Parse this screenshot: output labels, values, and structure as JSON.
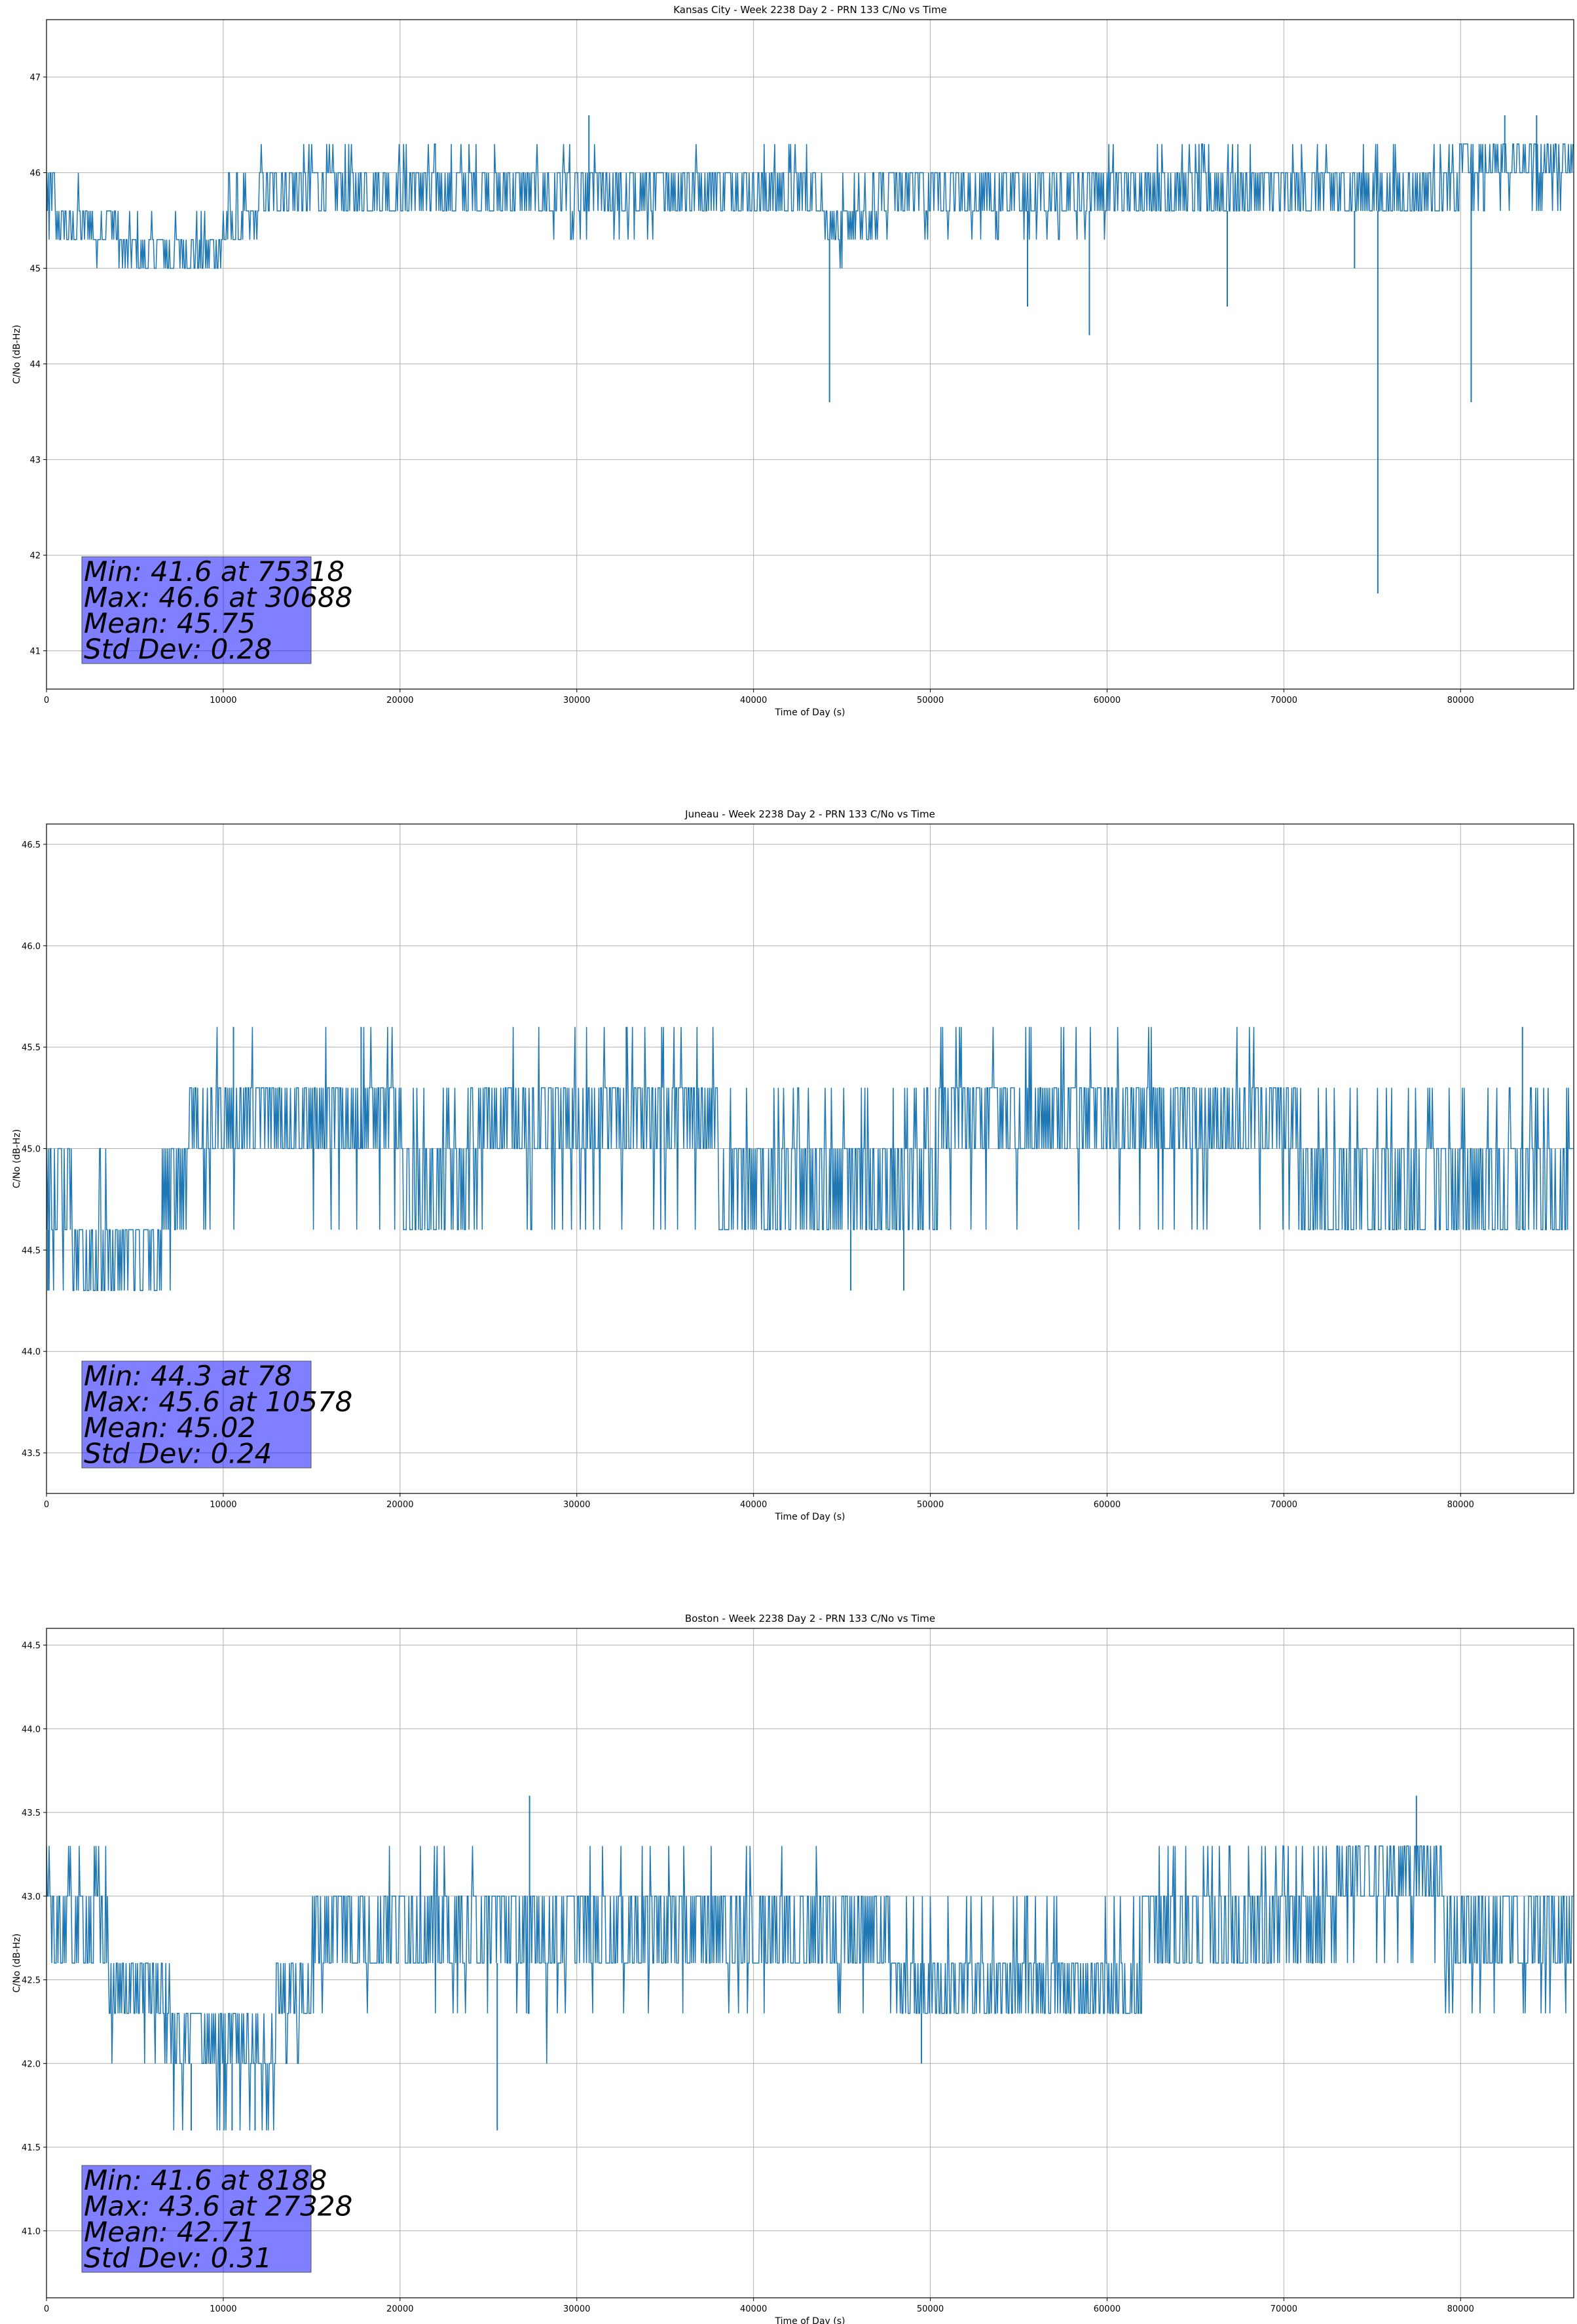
{
  "chart_data": [
    {
      "type": "line",
      "title": "Kansas City - Week 2238 Day 2 - PRN 133 C/No vs Time",
      "xlabel": "Time of Day (s)",
      "ylabel": "C/No (dB-Hz)",
      "xlim": [
        0,
        86400
      ],
      "ylim": [
        40.6,
        47.6
      ],
      "xticks": [
        0,
        10000,
        20000,
        30000,
        40000,
        50000,
        60000,
        70000,
        80000
      ],
      "yticks": [
        41,
        42,
        43,
        44,
        45,
        46,
        47
      ],
      "xtick_labels": [
        "0",
        "10000",
        "20000",
        "30000",
        "40000",
        "50000",
        "60000",
        "70000",
        "80000"
      ],
      "ytick_labels": [
        "41",
        "42",
        "43",
        "44",
        "45",
        "46",
        "47"
      ],
      "grid": true,
      "color": "#1f77b4",
      "series": [
        {
          "segments": [
            {
              "x": [
                0,
                500
              ],
              "levels": [
                45.6,
                46.0,
                45.3
              ]
            },
            {
              "x": [
                500,
                2000
              ],
              "levels": [
                45.3,
                45.6,
                46.0
              ]
            },
            {
              "x": [
                2000,
                4000
              ],
              "levels": [
                45.3,
                45.6,
                45.0
              ]
            },
            {
              "x": [
                4000,
                10000
              ],
              "levels": [
                45.0,
                45.3,
                45.6
              ]
            },
            {
              "x": [
                10000,
                12000
              ],
              "levels": [
                45.3,
                45.6,
                46.0
              ]
            },
            {
              "x": [
                12000,
                25500
              ],
              "levels": [
                45.6,
                46.0,
                46.3
              ]
            },
            {
              "x": [
                25500,
                36000
              ],
              "levels": [
                45.6,
                46.0,
                45.3,
                46.3
              ]
            },
            {
              "x": [
                36000,
                44000
              ],
              "levels": [
                45.6,
                46.0,
                46.3
              ]
            },
            {
              "x": [
                44000,
                47000
              ],
              "levels": [
                45.3,
                45.6,
                46.0,
                45.0
              ]
            },
            {
              "x": [
                47000,
                60000
              ],
              "levels": [
                45.6,
                46.0,
                45.3
              ]
            },
            {
              "x": [
                60000,
                80000
              ],
              "levels": [
                45.6,
                46.0,
                46.3
              ]
            },
            {
              "x": [
                80000,
                86400
              ],
              "levels": [
                46.0,
                46.3,
                45.6
              ]
            }
          ],
          "spikes": [
            {
              "x": 30688,
              "y": 46.6
            },
            {
              "x": 44300,
              "y": 43.6
            },
            {
              "x": 55500,
              "y": 44.6
            },
            {
              "x": 59000,
              "y": 44.3
            },
            {
              "x": 66800,
              "y": 44.6
            },
            {
              "x": 74000,
              "y": 45.0
            },
            {
              "x": 75318,
              "y": 41.6
            },
            {
              "x": 80600,
              "y": 43.6
            },
            {
              "x": 82500,
              "y": 46.6
            },
            {
              "x": 84300,
              "y": 46.6
            }
          ]
        }
      ],
      "stats": {
        "min": "Min: 41.6 at 75318",
        "max": "Max: 46.6 at 30688",
        "mean": "Mean: 45.75",
        "std": "Std Dev: 0.28"
      }
    },
    {
      "type": "line",
      "title": "Juneau - Week 2238 Day 2 - PRN 133 C/No vs Time",
      "xlabel": "Time of Day (s)",
      "ylabel": "C/No (dB-Hz)",
      "xlim": [
        0,
        86400
      ],
      "ylim": [
        43.3,
        46.6
      ],
      "xticks": [
        0,
        10000,
        20000,
        30000,
        40000,
        50000,
        60000,
        70000,
        80000
      ],
      "yticks": [
        43.5,
        44.0,
        44.5,
        45.0,
        45.5,
        46.0,
        46.5
      ],
      "xtick_labels": [
        "0",
        "10000",
        "20000",
        "30000",
        "40000",
        "50000",
        "60000",
        "70000",
        "80000"
      ],
      "ytick_labels": [
        "43.5",
        "44.0",
        "44.5",
        "45.0",
        "45.5",
        "46.0",
        "46.5"
      ],
      "grid": true,
      "color": "#1f77b4",
      "series": [
        {
          "segments": [
            {
              "x": [
                0,
                1500
              ],
              "levels": [
                44.6,
                45.0,
                44.3
              ]
            },
            {
              "x": [
                1500,
                3500
              ],
              "levels": [
                44.3,
                44.6,
                45.0
              ]
            },
            {
              "x": [
                3500,
                6500
              ],
              "levels": [
                44.3,
                44.6
              ]
            },
            {
              "x": [
                6500,
                8000
              ],
              "levels": [
                44.6,
                45.0,
                44.3
              ]
            },
            {
              "x": [
                8000,
                20000
              ],
              "levels": [
                45.0,
                45.3,
                45.6,
                44.6
              ]
            },
            {
              "x": [
                20000,
                24000
              ],
              "levels": [
                44.6,
                45.0,
                45.3
              ]
            },
            {
              "x": [
                24000,
                38000
              ],
              "levels": [
                45.0,
                45.3,
                44.6,
                45.6
              ]
            },
            {
              "x": [
                38000,
                50500
              ],
              "levels": [
                44.6,
                45.0,
                45.3
              ]
            },
            {
              "x": [
                50500,
                56500
              ],
              "levels": [
                45.0,
                45.3,
                45.6,
                44.6
              ]
            },
            {
              "x": [
                56500,
                71000
              ],
              "levels": [
                45.0,
                45.3,
                44.6,
                45.6
              ]
            },
            {
              "x": [
                71000,
                86400
              ],
              "levels": [
                44.6,
                45.0,
                45.3
              ]
            }
          ],
          "spikes": [
            {
              "x": 78,
              "y": 44.3
            },
            {
              "x": 10578,
              "y": 45.6
            },
            {
              "x": 17800,
              "y": 45.6
            },
            {
              "x": 32800,
              "y": 45.6
            },
            {
              "x": 45500,
              "y": 44.3
            },
            {
              "x": 48500,
              "y": 44.3
            },
            {
              "x": 83500,
              "y": 45.6
            }
          ]
        }
      ],
      "stats": {
        "min": "Min: 44.3 at 78",
        "max": "Max: 45.6 at 10578",
        "mean": "Mean: 45.02",
        "std": "Std Dev: 0.24"
      }
    },
    {
      "type": "line",
      "title": "Boston - Week 2238 Day 2 - PRN 133 C/No vs Time",
      "xlabel": "Time of Day (s)",
      "ylabel": "C/No (dB-Hz)",
      "xlim": [
        0,
        86400
      ],
      "ylim": [
        40.6,
        44.6
      ],
      "xticks": [
        0,
        10000,
        20000,
        30000,
        40000,
        50000,
        60000,
        70000,
        80000
      ],
      "yticks": [
        41.0,
        41.5,
        42.0,
        42.5,
        43.0,
        43.5,
        44.0,
        44.5
      ],
      "xtick_labels": [
        "0",
        "10000",
        "20000",
        "30000",
        "40000",
        "50000",
        "60000",
        "70000",
        "80000"
      ],
      "ytick_labels": [
        "41.0",
        "41.5",
        "42.0",
        "42.5",
        "43.0",
        "43.5",
        "44.0",
        "44.5"
      ],
      "grid": true,
      "color": "#1f77b4",
      "series": [
        {
          "segments": [
            {
              "x": [
                0,
                3500
              ],
              "levels": [
                42.6,
                43.0,
                43.3
              ]
            },
            {
              "x": [
                3500,
                7000
              ],
              "levels": [
                42.3,
                42.6,
                42.0
              ]
            },
            {
              "x": [
                7000,
                13000
              ],
              "levels": [
                42.0,
                42.3,
                41.6
              ]
            },
            {
              "x": [
                13000,
                15000
              ],
              "levels": [
                42.3,
                42.6,
                42.0
              ]
            },
            {
              "x": [
                15000,
                25000
              ],
              "levels": [
                42.6,
                43.0,
                42.3,
                43.3
              ]
            },
            {
              "x": [
                25000,
                29000
              ],
              "levels": [
                42.6,
                43.0,
                42.3,
                42.0
              ]
            },
            {
              "x": [
                29000,
                44000
              ],
              "levels": [
                42.6,
                43.0,
                43.3,
                42.3
              ]
            },
            {
              "x": [
                44000,
                48000
              ],
              "levels": [
                42.6,
                43.0,
                42.3
              ]
            },
            {
              "x": [
                48000,
                62000
              ],
              "levels": [
                42.3,
                42.6,
                43.0
              ]
            },
            {
              "x": [
                62000,
                73000
              ],
              "levels": [
                42.6,
                43.0,
                43.3
              ]
            },
            {
              "x": [
                73000,
                79000
              ],
              "levels": [
                43.0,
                43.3,
                42.6
              ]
            },
            {
              "x": [
                79000,
                86400
              ],
              "levels": [
                42.6,
                43.0,
                42.3
              ]
            }
          ],
          "spikes": [
            {
              "x": 8188,
              "y": 41.6
            },
            {
              "x": 10500,
              "y": 41.6
            },
            {
              "x": 11800,
              "y": 41.6
            },
            {
              "x": 25500,
              "y": 41.6
            },
            {
              "x": 27328,
              "y": 43.6
            },
            {
              "x": 49500,
              "y": 42.0
            },
            {
              "x": 77500,
              "y": 43.6
            }
          ]
        }
      ],
      "stats": {
        "min": "Min: 41.6 at 8188",
        "max": "Max: 43.6 at 27328",
        "mean": "Mean: 42.71",
        "std": "Std Dev: 0.31"
      }
    }
  ]
}
